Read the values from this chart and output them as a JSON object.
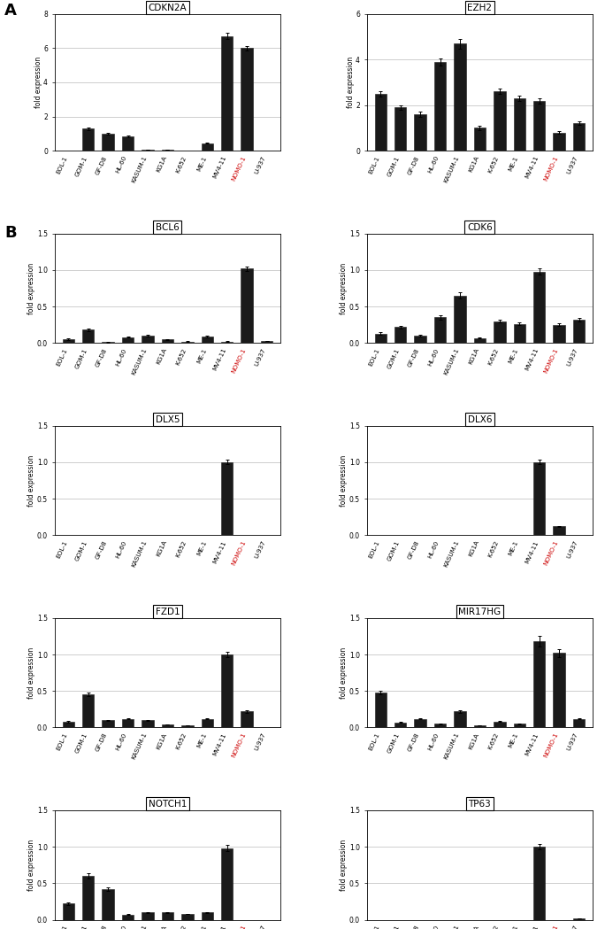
{
  "categories": [
    "EOL-1",
    "GOM-1",
    "GF-D8",
    "HL-60",
    "KASUM-1",
    "KG1A",
    "K-652",
    "ME-1",
    "MV4-11",
    "NOMO-1",
    "U-937"
  ],
  "nomo_index": 9,
  "panels": [
    {
      "panel_label": "A",
      "title": "CDKN2A",
      "ylim": [
        0,
        8
      ],
      "yticks": [
        0,
        2,
        4,
        6,
        8
      ],
      "values": [
        0.0,
        1.3,
        1.0,
        0.85,
        0.07,
        0.07,
        0.0,
        0.45,
        6.7,
        6.0,
        0.0
      ],
      "errors": [
        0.0,
        0.08,
        0.06,
        0.06,
        0.01,
        0.01,
        0.0,
        0.04,
        0.18,
        0.12,
        0.0
      ]
    },
    {
      "panel_label": "",
      "title": "EZH2",
      "ylim": [
        0,
        6
      ],
      "yticks": [
        0,
        2,
        4,
        6
      ],
      "values": [
        2.5,
        1.9,
        1.6,
        3.9,
        4.7,
        1.0,
        2.6,
        2.3,
        2.2,
        0.8,
        1.2
      ],
      "errors": [
        0.12,
        0.1,
        0.1,
        0.15,
        0.22,
        0.08,
        0.12,
        0.12,
        0.12,
        0.06,
        0.08
      ]
    },
    {
      "panel_label": "B",
      "title": "BCL6",
      "ylim": [
        0,
        1.5
      ],
      "yticks": [
        0,
        0.5,
        1.0,
        1.5
      ],
      "values": [
        0.05,
        0.18,
        0.01,
        0.08,
        0.1,
        0.05,
        0.02,
        0.09,
        0.02,
        1.02,
        0.03
      ],
      "errors": [
        0.01,
        0.015,
        0.003,
        0.008,
        0.008,
        0.006,
        0.003,
        0.008,
        0.003,
        0.03,
        0.003
      ]
    },
    {
      "panel_label": "",
      "title": "CDK6",
      "ylim": [
        0,
        1.5
      ],
      "yticks": [
        0,
        0.5,
        1.0,
        1.5
      ],
      "values": [
        0.13,
        0.22,
        0.1,
        0.35,
        0.65,
        0.07,
        0.3,
        0.26,
        0.98,
        0.25,
        0.32
      ],
      "errors": [
        0.015,
        0.018,
        0.01,
        0.025,
        0.04,
        0.008,
        0.02,
        0.018,
        0.04,
        0.018,
        0.02
      ]
    },
    {
      "panel_label": "",
      "title": "DLX5",
      "ylim": [
        0,
        1.5
      ],
      "yticks": [
        0,
        0.5,
        1.0,
        1.5
      ],
      "values": [
        0.0,
        0.0,
        0.0,
        0.0,
        0.0,
        0.0,
        0.0,
        0.0,
        1.0,
        0.0,
        0.0
      ],
      "errors": [
        0.0,
        0.0,
        0.0,
        0.0,
        0.0,
        0.0,
        0.0,
        0.0,
        0.03,
        0.0,
        0.0
      ]
    },
    {
      "panel_label": "",
      "title": "DLX6",
      "ylim": [
        0,
        1.5
      ],
      "yticks": [
        0,
        0.5,
        1.0,
        1.5
      ],
      "values": [
        0.0,
        0.0,
        0.0,
        0.0,
        0.0,
        0.0,
        0.0,
        0.0,
        1.0,
        0.12,
        0.0
      ],
      "errors": [
        0.0,
        0.0,
        0.0,
        0.0,
        0.0,
        0.0,
        0.0,
        0.0,
        0.03,
        0.008,
        0.0
      ]
    },
    {
      "panel_label": "",
      "title": "FZD1",
      "ylim": [
        0,
        1.5
      ],
      "yticks": [
        0,
        0.5,
        1.0,
        1.5
      ],
      "values": [
        0.08,
        0.45,
        0.1,
        0.12,
        0.1,
        0.04,
        0.03,
        0.12,
        1.0,
        0.22,
        0.0
      ],
      "errors": [
        0.008,
        0.025,
        0.008,
        0.01,
        0.008,
        0.004,
        0.003,
        0.01,
        0.04,
        0.015,
        0.0
      ]
    },
    {
      "panel_label": "",
      "title": "MIR17HG",
      "ylim": [
        0,
        1.5
      ],
      "yticks": [
        0,
        0.5,
        1.0,
        1.5
      ],
      "values": [
        0.48,
        0.07,
        0.12,
        0.05,
        0.22,
        0.03,
        0.08,
        0.05,
        1.18,
        1.02,
        0.12
      ],
      "errors": [
        0.025,
        0.006,
        0.01,
        0.004,
        0.015,
        0.003,
        0.006,
        0.004,
        0.07,
        0.05,
        0.01
      ]
    },
    {
      "panel_label": "",
      "title": "NOTCH1",
      "ylim": [
        0,
        1.5
      ],
      "yticks": [
        0,
        0.5,
        1.0,
        1.5
      ],
      "values": [
        0.22,
        0.6,
        0.42,
        0.07,
        0.1,
        0.1,
        0.08,
        0.1,
        0.98,
        0.0,
        0.0
      ],
      "errors": [
        0.015,
        0.035,
        0.025,
        0.005,
        0.007,
        0.007,
        0.005,
        0.007,
        0.04,
        0.0,
        0.0
      ]
    },
    {
      "panel_label": "",
      "title": "TP63",
      "ylim": [
        0,
        1.5
      ],
      "yticks": [
        0,
        0.5,
        1.0,
        1.5
      ],
      "values": [
        0.0,
        0.0,
        0.0,
        0.0,
        0.0,
        0.0,
        0.0,
        0.0,
        1.0,
        0.0,
        0.02
      ],
      "errors": [
        0.0,
        0.0,
        0.0,
        0.0,
        0.0,
        0.0,
        0.0,
        0.0,
        0.04,
        0.0,
        0.002
      ]
    }
  ],
  "bar_color": "#1a1a1a",
  "nomo_color": "#cc0000",
  "ylabel": "fold expression",
  "figsize": [
    6.84,
    10.49
  ],
  "dpi": 100
}
